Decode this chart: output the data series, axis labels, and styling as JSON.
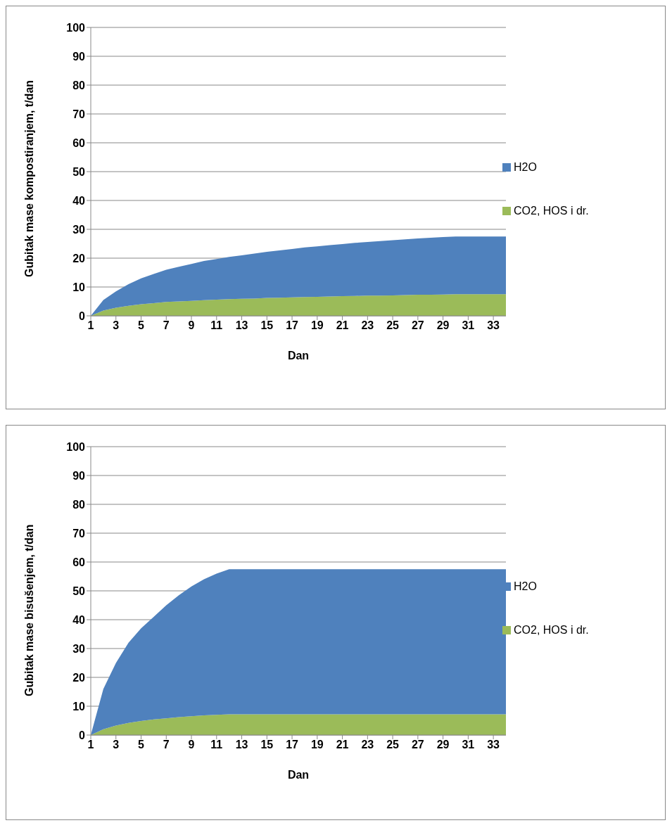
{
  "chart_data": [
    {
      "type": "area",
      "stacked": true,
      "xlabel": "Dan",
      "ylabel": "Gubitak mase kompostiranjem, t/dan",
      "x": [
        1,
        2,
        3,
        4,
        5,
        6,
        7,
        8,
        9,
        10,
        11,
        12,
        13,
        14,
        15,
        16,
        17,
        18,
        19,
        20,
        21,
        22,
        23,
        24,
        25,
        26,
        27,
        28,
        29,
        30,
        31,
        32,
        33,
        34
      ],
      "xlim": [
        1,
        34
      ],
      "xticks": [
        1,
        3,
        5,
        7,
        9,
        11,
        13,
        15,
        17,
        19,
        21,
        23,
        25,
        27,
        29,
        31,
        33
      ],
      "ylim": [
        0,
        100
      ],
      "yticks": [
        0,
        10,
        20,
        30,
        40,
        50,
        60,
        70,
        80,
        90,
        100
      ],
      "grid": "y",
      "legend": "right",
      "series": [
        {
          "name": "CO2, HOS i dr.",
          "color": "#9bbb59",
          "values": [
            0,
            1.8,
            2.8,
            3.5,
            4,
            4.4,
            4.8,
            5,
            5.2,
            5.4,
            5.6,
            5.8,
            5.9,
            6,
            6.2,
            6.3,
            6.4,
            6.5,
            6.6,
            6.7,
            6.8,
            6.9,
            7,
            7,
            7.1,
            7.2,
            7.3,
            7.3,
            7.4,
            7.5,
            7.5,
            7.5,
            7.5,
            7.5
          ]
        },
        {
          "name": "H2O",
          "color": "#4f81bd",
          "values": [
            0,
            3.7,
            5.7,
            7.5,
            9,
            10.1,
            11.2,
            12,
            12.8,
            13.6,
            14.1,
            14.6,
            15.1,
            15.6,
            16,
            16.4,
            16.8,
            17.2,
            17.5,
            17.8,
            18.1,
            18.4,
            18.6,
            18.9,
            19.1,
            19.3,
            19.5,
            19.8,
            19.9,
            20,
            20,
            20,
            20,
            20
          ]
        }
      ]
    },
    {
      "type": "area",
      "stacked": true,
      "xlabel": "Dan",
      "ylabel": "Gubitak mase bisušenjem, t/dan",
      "x": [
        1,
        2,
        3,
        4,
        5,
        6,
        7,
        8,
        9,
        10,
        11,
        12,
        13,
        14,
        15,
        16,
        17,
        18,
        19,
        20,
        21,
        22,
        23,
        24,
        25,
        26,
        27,
        28,
        29,
        30,
        31,
        32,
        33,
        34
      ],
      "xlim": [
        1,
        34
      ],
      "xticks": [
        1,
        3,
        5,
        7,
        9,
        11,
        13,
        15,
        17,
        19,
        21,
        23,
        25,
        27,
        29,
        31,
        33
      ],
      "ylim": [
        0,
        100
      ],
      "yticks": [
        0,
        10,
        20,
        30,
        40,
        50,
        60,
        70,
        80,
        90,
        100
      ],
      "grid": "y",
      "legend": "right",
      "series": [
        {
          "name": "CO2, HOS i dr.",
          "color": "#9bbb59",
          "values": [
            0,
            2,
            3.3,
            4.2,
            4.9,
            5.4,
            5.8,
            6.2,
            6.5,
            6.8,
            7,
            7.2,
            7.2,
            7.2,
            7.2,
            7.2,
            7.2,
            7.2,
            7.2,
            7.2,
            7.2,
            7.2,
            7.2,
            7.2,
            7.2,
            7.2,
            7.2,
            7.2,
            7.2,
            7.2,
            7.2,
            7.2,
            7.2,
            7.2
          ]
        },
        {
          "name": "H2O",
          "color": "#4f81bd",
          "values": [
            0,
            14,
            21.7,
            27.8,
            32.1,
            35.6,
            39.2,
            42.3,
            45,
            47.2,
            49,
            50.3,
            50.3,
            50.3,
            50.3,
            50.3,
            50.3,
            50.3,
            50.3,
            50.3,
            50.3,
            50.3,
            50.3,
            50.3,
            50.3,
            50.3,
            50.3,
            50.3,
            50.3,
            50.3,
            50.3,
            50.3,
            50.3,
            50.3
          ]
        }
      ]
    }
  ]
}
